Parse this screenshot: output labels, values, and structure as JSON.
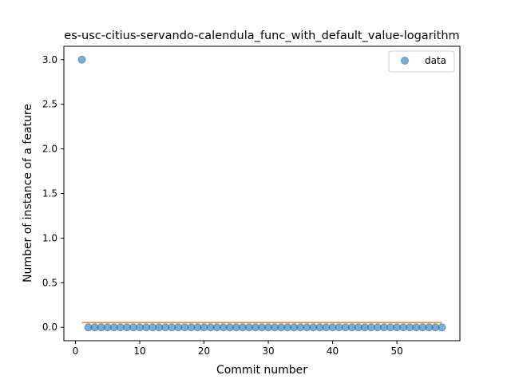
{
  "chart_data": {
    "type": "scatter",
    "title": "es-usc-citius-servando-calendula_func_with_default_value-logarithm",
    "xlabel": "Commit number",
    "ylabel": "Number of instance of a feature",
    "xlim": [
      -1.8,
      59.8
    ],
    "ylim": [
      -0.15,
      3.15
    ],
    "xticks": [
      0,
      10,
      20,
      30,
      40,
      50
    ],
    "xtick_labels": [
      "0",
      "10",
      "20",
      "30",
      "40",
      "50"
    ],
    "yticks": [
      0.0,
      0.5,
      1.0,
      1.5,
      2.0,
      2.5,
      3.0
    ],
    "ytick_labels": [
      "0.0",
      "0.5",
      "1.0",
      "1.5",
      "2.0",
      "2.5",
      "3.0"
    ],
    "grid": false,
    "legend_position": "top-right",
    "series": [
      {
        "name": "data",
        "kind": "scatter",
        "color": "#1f77b4",
        "x": [
          1,
          2,
          3,
          4,
          5,
          6,
          7,
          8,
          9,
          10,
          11,
          12,
          13,
          14,
          15,
          16,
          17,
          18,
          19,
          20,
          21,
          22,
          23,
          24,
          25,
          26,
          27,
          28,
          29,
          30,
          31,
          32,
          33,
          34,
          35,
          36,
          37,
          38,
          39,
          40,
          41,
          42,
          43,
          44,
          45,
          46,
          47,
          48,
          49,
          50,
          51,
          52,
          53,
          54,
          55,
          56,
          57
        ],
        "y": [
          3,
          0,
          0,
          0,
          0,
          0,
          0,
          0,
          0,
          0,
          0,
          0,
          0,
          0,
          0,
          0,
          0,
          0,
          0,
          0,
          0,
          0,
          0,
          0,
          0,
          0,
          0,
          0,
          0,
          0,
          0,
          0,
          0,
          0,
          0,
          0,
          0,
          0,
          0,
          0,
          0,
          0,
          0,
          0,
          0,
          0,
          0,
          0,
          0,
          0,
          0,
          0,
          0,
          0,
          0,
          0,
          0
        ]
      },
      {
        "kind": "line",
        "color": "#ff7f0e",
        "x": [
          1,
          57
        ],
        "y": [
          0.0526,
          0.0526
        ]
      }
    ]
  }
}
